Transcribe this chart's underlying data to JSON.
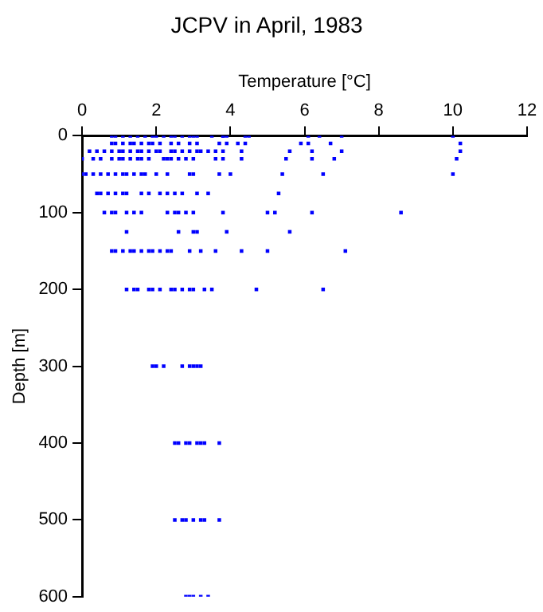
{
  "chart_data": {
    "type": "scatter",
    "title": "JCPV in April, 1983",
    "xlabel": "Temperature [°C]",
    "ylabel": "Depth [m]",
    "xlim": [
      0,
      12
    ],
    "xticks": [
      0,
      2,
      4,
      6,
      8,
      10,
      12
    ],
    "ylim": [
      600,
      0
    ],
    "yticks": [
      0,
      100,
      200,
      300,
      400,
      500,
      600
    ],
    "grid": false,
    "legend": false,
    "marker": "square",
    "series": [
      {
        "color": "#0000ff",
        "x": [
          0.8,
          0.9,
          1.1,
          1.3,
          1.5,
          1.7,
          1.9,
          2.0,
          2.2,
          2.4,
          2.5,
          2.7,
          2.9,
          3.0,
          3.1,
          3.5,
          3.8,
          3.8,
          3.9,
          4.4,
          4.5,
          6.1,
          6.4,
          7.0,
          10.0,
          0.8,
          0.9,
          1.1,
          1.3,
          1.4,
          1.6,
          1.8,
          1.9,
          2.1,
          2.4,
          2.6,
          2.9,
          3.1,
          3.7,
          3.9,
          4.2,
          4.4,
          5.9,
          6.1,
          6.7,
          10.2,
          0.2,
          0.4,
          0.6,
          0.8,
          1.0,
          1.1,
          1.3,
          1.5,
          1.6,
          1.8,
          2.0,
          2.1,
          2.4,
          2.5,
          2.7,
          2.9,
          3.1,
          3.2,
          3.4,
          3.6,
          3.8,
          4.3,
          5.6,
          6.2,
          7.0,
          10.2,
          0.0,
          0.3,
          0.5,
          0.8,
          1.0,
          1.1,
          1.3,
          1.5,
          1.6,
          1.8,
          2.2,
          2.3,
          2.4,
          2.6,
          2.8,
          3.0,
          3.6,
          3.8,
          4.3,
          5.5,
          6.2,
          6.8,
          10.1,
          0.0,
          0.1,
          0.3,
          0.5,
          0.7,
          0.9,
          1.1,
          1.2,
          1.4,
          1.6,
          1.7,
          2.0,
          2.3,
          2.9,
          3.0,
          3.7,
          4.0,
          5.4,
          6.5,
          10.0,
          0.4,
          0.5,
          0.7,
          0.9,
          1.1,
          1.2,
          1.6,
          1.8,
          2.1,
          2.3,
          2.5,
          2.7,
          3.1,
          3.4,
          5.3,
          0.6,
          0.8,
          0.9,
          1.2,
          1.4,
          1.6,
          2.3,
          2.5,
          2.6,
          2.8,
          3.0,
          3.8,
          5.0,
          5.2,
          6.2,
          8.6,
          1.2,
          2.6,
          3.0,
          3.1,
          3.9,
          5.6,
          0.8,
          0.9,
          1.1,
          1.3,
          1.4,
          1.6,
          1.8,
          1.9,
          2.1,
          2.3,
          2.4,
          2.9,
          3.2,
          3.6,
          4.3,
          5.0,
          7.1,
          1.2,
          1.4,
          1.5,
          1.8,
          1.9,
          2.1,
          2.4,
          2.5,
          2.7,
          2.9,
          3.0,
          3.3,
          3.5,
          4.7,
          6.5,
          1.9,
          2.0,
          2.2,
          2.7,
          2.9,
          3.0,
          3.1,
          3.2,
          2.5,
          2.6,
          2.8,
          2.9,
          3.1,
          3.2,
          3.3,
          3.7,
          2.5,
          2.7,
          2.8,
          3.0,
          3.2,
          3.3,
          3.7,
          2.8,
          2.9,
          3.0,
          3.2,
          3.4
        ],
        "values": [
          0,
          0,
          0,
          0,
          0,
          0,
          0,
          0,
          0,
          0,
          0,
          0,
          0,
          0,
          0,
          0,
          0,
          0,
          0,
          0,
          0,
          0,
          0,
          0,
          0,
          10,
          10,
          10,
          10,
          10,
          10,
          10,
          10,
          10,
          10,
          10,
          10,
          10,
          10,
          10,
          10,
          10,
          10,
          10,
          10,
          10,
          20,
          20,
          20,
          20,
          20,
          20,
          20,
          20,
          20,
          20,
          20,
          20,
          20,
          20,
          20,
          20,
          20,
          20,
          20,
          20,
          20,
          20,
          20,
          20,
          20,
          20,
          30,
          30,
          30,
          30,
          30,
          30,
          30,
          30,
          30,
          30,
          30,
          30,
          30,
          30,
          30,
          30,
          30,
          30,
          30,
          30,
          30,
          30,
          30,
          50,
          50,
          50,
          50,
          50,
          50,
          50,
          50,
          50,
          50,
          50,
          50,
          50,
          50,
          50,
          50,
          50,
          50,
          50,
          50,
          75,
          75,
          75,
          75,
          75,
          75,
          75,
          75,
          75,
          75,
          75,
          75,
          75,
          75,
          75,
          100,
          100,
          100,
          100,
          100,
          100,
          100,
          100,
          100,
          100,
          100,
          100,
          100,
          100,
          100,
          100,
          125,
          125,
          125,
          125,
          125,
          125,
          150,
          150,
          150,
          150,
          150,
          150,
          150,
          150,
          150,
          150,
          150,
          150,
          150,
          150,
          150,
          150,
          150,
          200,
          200,
          200,
          200,
          200,
          200,
          200,
          200,
          200,
          200,
          200,
          200,
          200,
          200,
          200,
          300,
          300,
          300,
          300,
          300,
          300,
          300,
          300,
          400,
          400,
          400,
          400,
          400,
          400,
          400,
          400,
          500,
          500,
          500,
          500,
          500,
          500,
          500,
          600,
          600,
          600,
          600,
          600
        ]
      }
    ]
  }
}
